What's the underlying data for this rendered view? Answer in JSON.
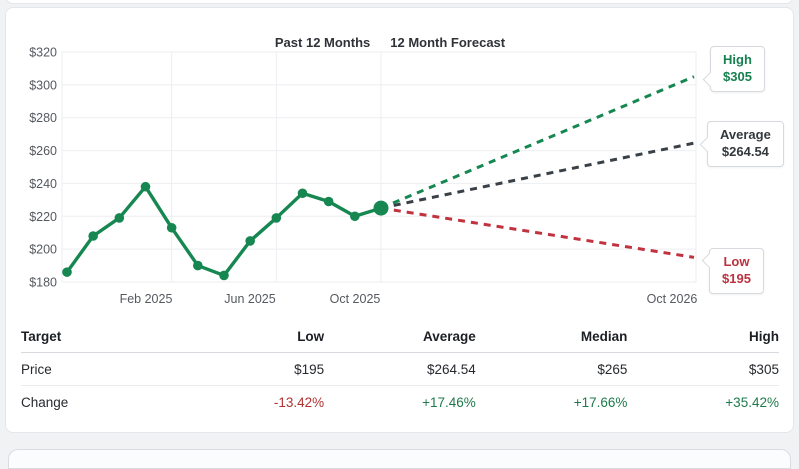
{
  "colors": {
    "series_green": "#178752",
    "forecast_dark": "#3a4047",
    "forecast_red": "#c1313e",
    "grid": "#eceef1"
  },
  "chart_data": {
    "type": "line",
    "titles": {
      "left": "Past 12 Months",
      "right": "12 Month Forecast"
    },
    "ylim": [
      180,
      320
    ],
    "y_ticks": [
      {
        "v": 320,
        "label": "$320"
      },
      {
        "v": 300,
        "label": "$300"
      },
      {
        "v": 280,
        "label": "$280"
      },
      {
        "v": 260,
        "label": "$260"
      },
      {
        "v": 240,
        "label": "$240"
      },
      {
        "v": 220,
        "label": "$220"
      },
      {
        "v": 200,
        "label": "$200"
      },
      {
        "v": 180,
        "label": "$180"
      }
    ],
    "x_tick_labels": [
      "Feb 2025",
      "Jun 2025",
      "Oct 2025",
      "Oct 2026"
    ],
    "history": {
      "name": "Past 12 Months",
      "values": [
        186,
        208,
        219,
        238,
        213,
        190,
        184,
        205,
        219,
        234,
        229,
        220,
        225
      ],
      "current_value": 225,
      "color": "#178752"
    },
    "forecast": [
      {
        "name": "High",
        "value": 305,
        "callout_title": "High",
        "callout_value": "$305",
        "color": "#178752"
      },
      {
        "name": "Average",
        "value": 264.54,
        "callout_title": "Average",
        "callout_value": "$264.54",
        "color": "#3a4047"
      },
      {
        "name": "Low",
        "value": 195,
        "callout_title": "Low",
        "callout_value": "$195",
        "color": "#c1313e"
      }
    ]
  },
  "table": {
    "headers": [
      "Target",
      "Low",
      "Average",
      "Median",
      "High"
    ],
    "rows": [
      {
        "label": "Price",
        "cells": [
          "$195",
          "$264.54",
          "$265",
          "$305"
        ]
      },
      {
        "label": "Change",
        "cells": [
          "-13.42%",
          "+17.46%",
          "+17.66%",
          "+35.42%"
        ]
      }
    ]
  }
}
